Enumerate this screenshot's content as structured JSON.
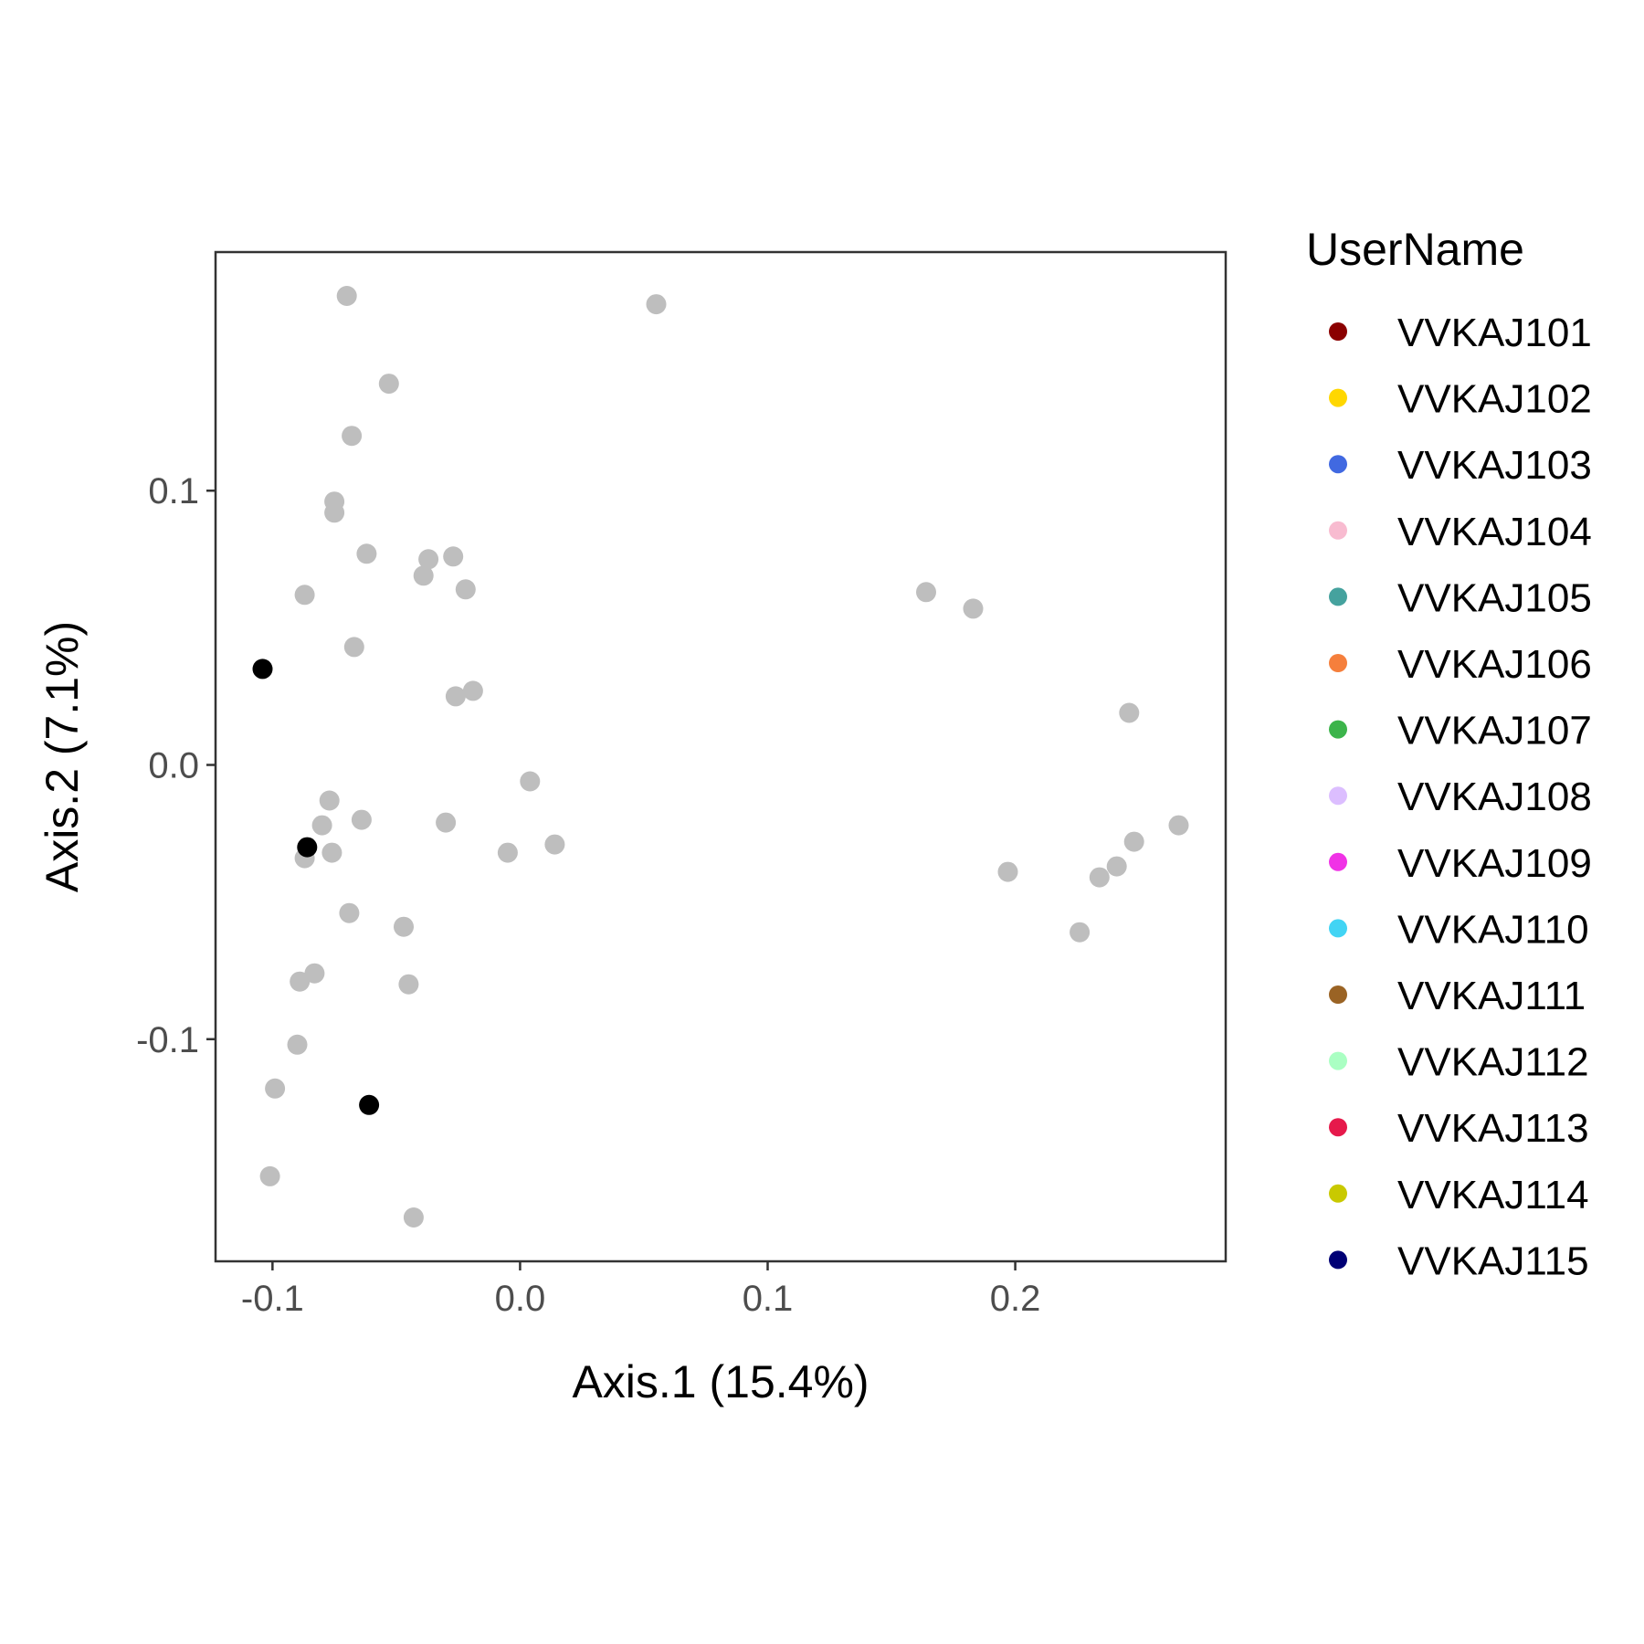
{
  "chart_data": {
    "type": "scatter",
    "xlabel": "Axis.1 (15.4%)",
    "ylabel": "Axis.2 (7.1%)",
    "xlim": [
      -0.123,
      0.285
    ],
    "ylim": [
      -0.181,
      0.187
    ],
    "xticks": [
      -0.1,
      0.0,
      0.1,
      0.2
    ],
    "xtick_labels": [
      "-0.1",
      "0.0",
      "0.1",
      "0.2"
    ],
    "yticks": [
      -0.1,
      0.0,
      0.1
    ],
    "ytick_labels": [
      "-0.1",
      "0.0",
      "0.1"
    ],
    "grid": false,
    "legend_placement": "right",
    "legend": {
      "title": "UserName",
      "entries": [
        {
          "label": "VVKAJ101",
          "color": "#8b0000"
        },
        {
          "label": "VVKAJ102",
          "color": "#ffd700"
        },
        {
          "label": "VVKAJ103",
          "color": "#4169e1"
        },
        {
          "label": "VVKAJ104",
          "color": "#f8bbd0"
        },
        {
          "label": "VVKAJ105",
          "color": "#45a29e"
        },
        {
          "label": "VVKAJ106",
          "color": "#f57f3c"
        },
        {
          "label": "VVKAJ107",
          "color": "#3cb44b"
        },
        {
          "label": "VVKAJ108",
          "color": "#dcbeff"
        },
        {
          "label": "VVKAJ109",
          "color": "#f032e6"
        },
        {
          "label": "VVKAJ110",
          "color": "#42d4f4"
        },
        {
          "label": "VVKAJ111",
          "color": "#9a6324"
        },
        {
          "label": "VVKAJ112",
          "color": "#aaffc3"
        },
        {
          "label": "VVKAJ113",
          "color": "#e6194b"
        },
        {
          "label": "VVKAJ114",
          "color": "#c9c900"
        },
        {
          "label": "VVKAJ115",
          "color": "#000075"
        }
      ]
    },
    "series": [
      {
        "color": "#bebebe",
        "points": [
          [
            -0.07,
            0.171
          ],
          [
            0.055,
            0.168
          ],
          [
            -0.053,
            0.139
          ],
          [
            -0.068,
            0.12
          ],
          [
            -0.075,
            0.096
          ],
          [
            -0.075,
            0.092
          ],
          [
            -0.062,
            0.077
          ],
          [
            -0.037,
            0.075
          ],
          [
            -0.027,
            0.076
          ],
          [
            -0.039,
            0.069
          ],
          [
            -0.022,
            0.064
          ],
          [
            -0.087,
            0.062
          ],
          [
            -0.067,
            0.043
          ],
          [
            -0.019,
            0.027
          ],
          [
            -0.026,
            0.025
          ],
          [
            0.004,
            -0.006
          ],
          [
            -0.077,
            -0.013
          ],
          [
            -0.064,
            -0.02
          ],
          [
            -0.08,
            -0.022
          ],
          [
            -0.03,
            -0.021
          ],
          [
            -0.076,
            -0.032
          ],
          [
            -0.087,
            -0.034
          ],
          [
            -0.005,
            -0.032
          ],
          [
            0.014,
            -0.029
          ],
          [
            -0.069,
            -0.054
          ],
          [
            -0.047,
            -0.059
          ],
          [
            -0.083,
            -0.076
          ],
          [
            -0.089,
            -0.079
          ],
          [
            -0.045,
            -0.08
          ],
          [
            -0.09,
            -0.102
          ],
          [
            -0.099,
            -0.118
          ],
          [
            -0.101,
            -0.15
          ],
          [
            -0.043,
            -0.165
          ],
          [
            0.164,
            0.063
          ],
          [
            0.183,
            0.057
          ],
          [
            0.246,
            0.019
          ],
          [
            0.266,
            -0.022
          ],
          [
            0.248,
            -0.028
          ],
          [
            0.241,
            -0.037
          ],
          [
            0.234,
            -0.041
          ],
          [
            0.197,
            -0.039
          ],
          [
            0.226,
            -0.061
          ]
        ]
      },
      {
        "color": "#000000",
        "points": [
          [
            -0.104,
            0.035
          ],
          [
            -0.086,
            -0.03
          ],
          [
            -0.061,
            -0.124
          ]
        ]
      }
    ]
  }
}
